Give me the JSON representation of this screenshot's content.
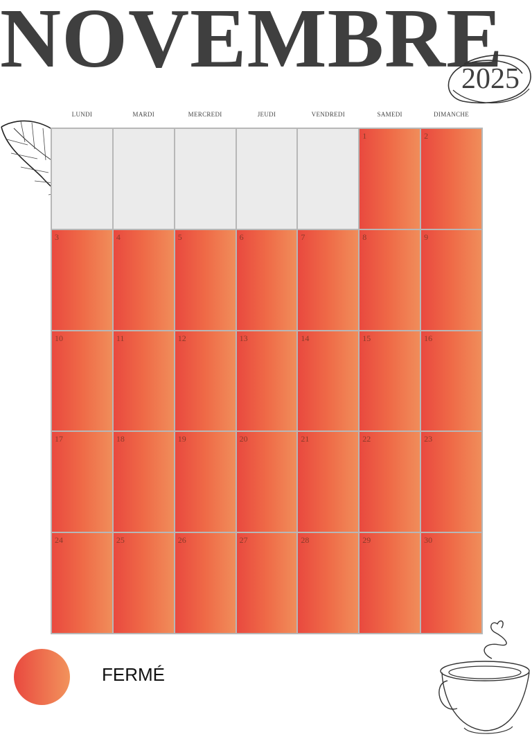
{
  "title": "NOVEMBRE",
  "year": "2025",
  "weekdays": [
    "LUNDI",
    "MARDI",
    "MERCREDI",
    "JEUDI",
    "VENDREDI",
    "SAMEDI",
    "DIMANCHE"
  ],
  "calendar": {
    "first_weekday_index": 5,
    "days_in_month": 30,
    "closed_color_start": "#e9493f",
    "closed_color_end": "#f2935c",
    "empty_color": "#ebebeb"
  },
  "legend": {
    "label": "FERMÉ"
  },
  "icons": [
    "leaf-drawing",
    "coffee-cup-drawing",
    "year-circle-scribble"
  ]
}
